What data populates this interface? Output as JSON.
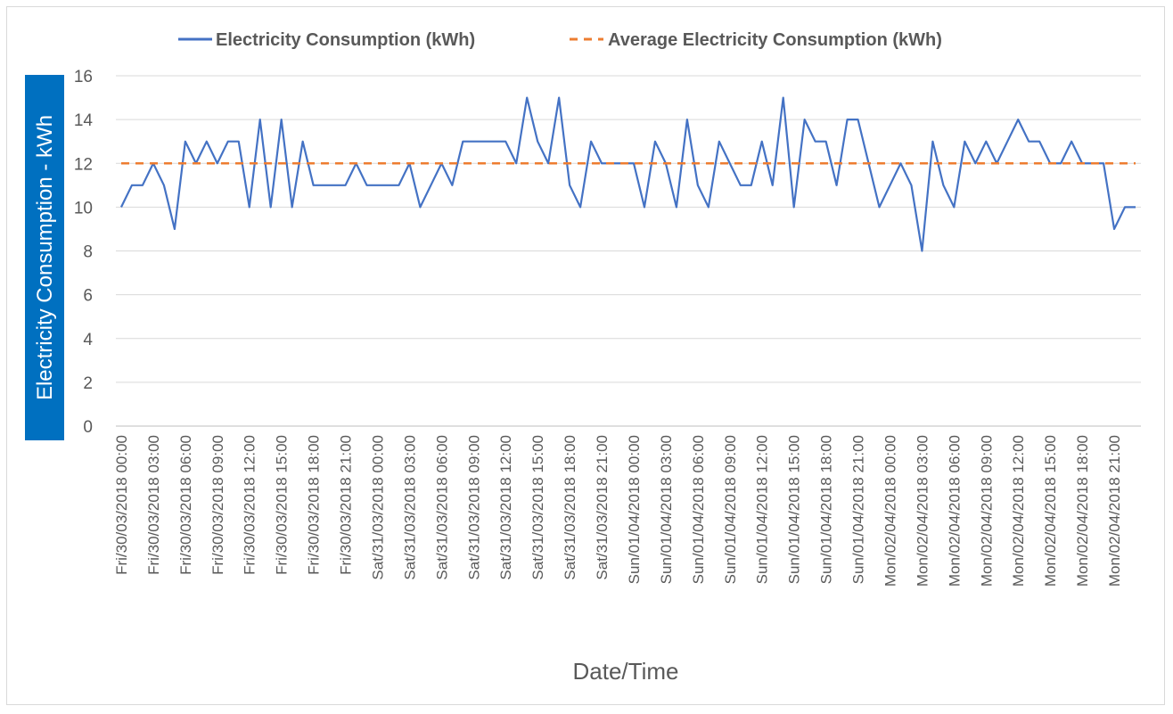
{
  "chart_data": {
    "type": "line",
    "title": "",
    "xlabel": "Date/Time",
    "ylabel": "Electricity Consumption - kWh",
    "ylim": [
      0,
      16
    ],
    "yticks": [
      0,
      2,
      4,
      6,
      8,
      10,
      12,
      14,
      16
    ],
    "grid": true,
    "legend_position": "top",
    "colors": {
      "consumption": "#4472c4",
      "average": "#ed7d31",
      "ylabel_background": "#0070c0"
    },
    "x": [
      "Fri/30/03/2018 00:00",
      "Fri/30/03/2018 01:00",
      "Fri/30/03/2018 02:00",
      "Fri/30/03/2018 03:00",
      "Fri/30/03/2018 04:00",
      "Fri/30/03/2018 05:00",
      "Fri/30/03/2018 06:00",
      "Fri/30/03/2018 07:00",
      "Fri/30/03/2018 08:00",
      "Fri/30/03/2018 09:00",
      "Fri/30/03/2018 10:00",
      "Fri/30/03/2018 11:00",
      "Fri/30/03/2018 12:00",
      "Fri/30/03/2018 13:00",
      "Fri/30/03/2018 14:00",
      "Fri/30/03/2018 15:00",
      "Fri/30/03/2018 16:00",
      "Fri/30/03/2018 17:00",
      "Fri/30/03/2018 18:00",
      "Fri/30/03/2018 19:00",
      "Fri/30/03/2018 20:00",
      "Fri/30/03/2018 21:00",
      "Fri/30/03/2018 22:00",
      "Fri/30/03/2018 23:00",
      "Sat/31/03/2018 00:00",
      "Sat/31/03/2018 01:00",
      "Sat/31/03/2018 02:00",
      "Sat/31/03/2018 03:00",
      "Sat/31/03/2018 04:00",
      "Sat/31/03/2018 05:00",
      "Sat/31/03/2018 06:00",
      "Sat/31/03/2018 07:00",
      "Sat/31/03/2018 08:00",
      "Sat/31/03/2018 09:00",
      "Sat/31/03/2018 10:00",
      "Sat/31/03/2018 11:00",
      "Sat/31/03/2018 12:00",
      "Sat/31/03/2018 13:00",
      "Sat/31/03/2018 14:00",
      "Sat/31/03/2018 15:00",
      "Sat/31/03/2018 16:00",
      "Sat/31/03/2018 17:00",
      "Sat/31/03/2018 18:00",
      "Sat/31/03/2018 19:00",
      "Sat/31/03/2018 20:00",
      "Sat/31/03/2018 21:00",
      "Sat/31/03/2018 22:00",
      "Sat/31/03/2018 23:00",
      "Sun/01/04/2018 00:00",
      "Sun/01/04/2018 01:00",
      "Sun/01/04/2018 02:00",
      "Sun/01/04/2018 03:00",
      "Sun/01/04/2018 04:00",
      "Sun/01/04/2018 05:00",
      "Sun/01/04/2018 06:00",
      "Sun/01/04/2018 07:00",
      "Sun/01/04/2018 08:00",
      "Sun/01/04/2018 09:00",
      "Sun/01/04/2018 10:00",
      "Sun/01/04/2018 11:00",
      "Sun/01/04/2018 12:00",
      "Sun/01/04/2018 13:00",
      "Sun/01/04/2018 14:00",
      "Sun/01/04/2018 15:00",
      "Sun/01/04/2018 16:00",
      "Sun/01/04/2018 17:00",
      "Sun/01/04/2018 18:00",
      "Sun/01/04/2018 19:00",
      "Sun/01/04/2018 20:00",
      "Sun/01/04/2018 21:00",
      "Sun/01/04/2018 22:00",
      "Sun/01/04/2018 23:00",
      "Mon/02/04/2018 00:00",
      "Mon/02/04/2018 01:00",
      "Mon/02/04/2018 02:00",
      "Mon/02/04/2018 03:00",
      "Mon/02/04/2018 04:00",
      "Mon/02/04/2018 05:00",
      "Mon/02/04/2018 06:00",
      "Mon/02/04/2018 07:00",
      "Mon/02/04/2018 08:00",
      "Mon/02/04/2018 09:00",
      "Mon/02/04/2018 10:00",
      "Mon/02/04/2018 11:00",
      "Mon/02/04/2018 12:00",
      "Mon/02/04/2018 13:00",
      "Mon/02/04/2018 14:00",
      "Mon/02/04/2018 15:00",
      "Mon/02/04/2018 16:00",
      "Mon/02/04/2018 17:00",
      "Mon/02/04/2018 18:00",
      "Mon/02/04/2018 19:00",
      "Mon/02/04/2018 20:00",
      "Mon/02/04/2018 21:00",
      "Mon/02/04/2018 22:00",
      "Mon/02/04/2018 23:00"
    ],
    "x_tick_labels": [
      "Fri/30/03/2018 00:00",
      "Fri/30/03/2018 03:00",
      "Fri/30/03/2018 06:00",
      "Fri/30/03/2018 09:00",
      "Fri/30/03/2018 12:00",
      "Fri/30/03/2018 15:00",
      "Fri/30/03/2018 18:00",
      "Fri/30/03/2018 21:00",
      "Sat/31/03/2018 00:00",
      "Sat/31/03/2018 03:00",
      "Sat/31/03/2018 06:00",
      "Sat/31/03/2018 09:00",
      "Sat/31/03/2018 12:00",
      "Sat/31/03/2018 15:00",
      "Sat/31/03/2018 18:00",
      "Sat/31/03/2018 21:00",
      "Sun/01/04/2018 00:00",
      "Sun/01/04/2018 03:00",
      "Sun/01/04/2018 06:00",
      "Sun/01/04/2018 09:00",
      "Sun/01/04/2018 12:00",
      "Sun/01/04/2018 15:00",
      "Sun/01/04/2018 18:00",
      "Sun/01/04/2018 21:00",
      "Mon/02/04/2018 00:00",
      "Mon/02/04/2018 03:00",
      "Mon/02/04/2018 06:00",
      "Mon/02/04/2018 09:00",
      "Mon/02/04/2018 12:00",
      "Mon/02/04/2018 15:00",
      "Mon/02/04/2018 18:00",
      "Mon/02/04/2018 21:00"
    ],
    "series": [
      {
        "name": "Electricity Consumption (kWh)",
        "style": "solid",
        "values": [
          10,
          11,
          11,
          12,
          11,
          9,
          13,
          12,
          13,
          12,
          13,
          13,
          10,
          14,
          10,
          14,
          10,
          13,
          11,
          11,
          11,
          11,
          12,
          11,
          11,
          11,
          11,
          12,
          10,
          11,
          12,
          11,
          13,
          13,
          13,
          13,
          13,
          12,
          15,
          13,
          12,
          15,
          11,
          10,
          13,
          12,
          12,
          12,
          12,
          10,
          13,
          12,
          10,
          14,
          11,
          10,
          13,
          12,
          11,
          11,
          13,
          11,
          15,
          10,
          14,
          13,
          13,
          11,
          14,
          14,
          12,
          10,
          11,
          12,
          11,
          8,
          13,
          11,
          10,
          13,
          12,
          13,
          12,
          13,
          14,
          13,
          13,
          12,
          12,
          13,
          12,
          12,
          12,
          9,
          10,
          10
        ]
      },
      {
        "name": "Average Electricity Consumption (kWh)",
        "style": "dashed",
        "values": [
          12,
          12,
          12,
          12,
          12,
          12,
          12,
          12,
          12,
          12,
          12,
          12,
          12,
          12,
          12,
          12,
          12,
          12,
          12,
          12,
          12,
          12,
          12,
          12,
          12,
          12,
          12,
          12,
          12,
          12,
          12,
          12,
          12,
          12,
          12,
          12,
          12,
          12,
          12,
          12,
          12,
          12,
          12,
          12,
          12,
          12,
          12,
          12,
          12,
          12,
          12,
          12,
          12,
          12,
          12,
          12,
          12,
          12,
          12,
          12,
          12,
          12,
          12,
          12,
          12,
          12,
          12,
          12,
          12,
          12,
          12,
          12,
          12,
          12,
          12,
          12,
          12,
          12,
          12,
          12,
          12,
          12,
          12,
          12,
          12,
          12,
          12,
          12,
          12,
          12,
          12,
          12,
          12,
          12,
          12,
          12
        ]
      }
    ]
  }
}
